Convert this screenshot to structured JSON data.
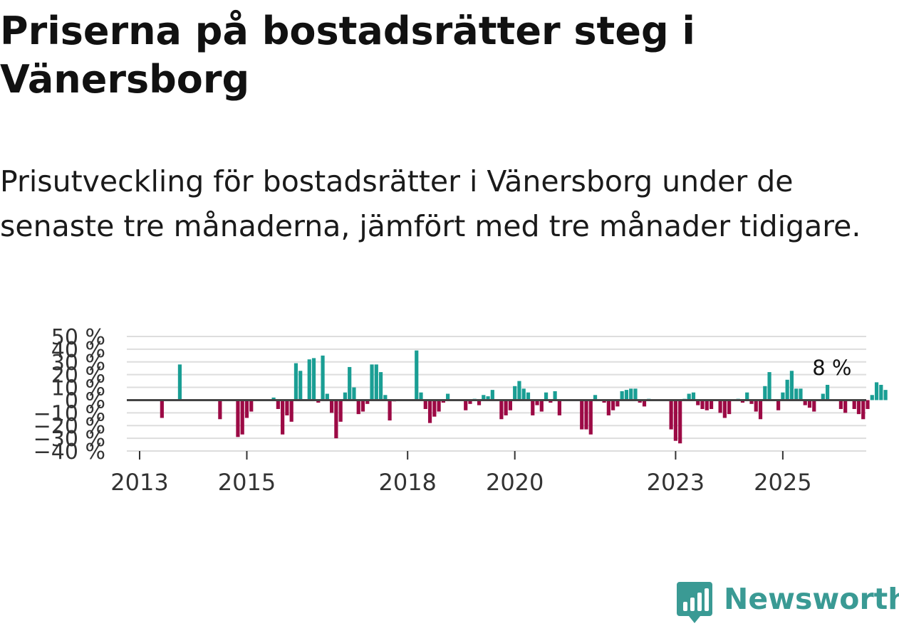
{
  "title": "Priserna på bostadsrätter steg i Vänersborg",
  "subtitle": "Prisutveckling för bostadsrätter i Vänersborg under de senaste tre månaderna, jämfört med tre månader tidigare.",
  "brand": {
    "name": "Newsworthy",
    "icon": "newsworthy-logo-icon",
    "color": "#3a9a94"
  },
  "colors": {
    "positive": "#1a9e94",
    "negative": "#9c0a45",
    "zero_line": "#444444",
    "grid": "#dddddd"
  },
  "chart_data": {
    "type": "bar",
    "title": "",
    "xlabel": "",
    "ylabel": "",
    "ylim": [
      -40,
      50
    ],
    "yticks": [
      50,
      40,
      30,
      20,
      10,
      0,
      -10,
      -20,
      -30,
      -40
    ],
    "ytick_labels": [
      "50 %",
      "40 %",
      "30 %",
      "20 %",
      "10 %",
      "0 %",
      "−10 %",
      "−20 %",
      "−30 %",
      "−40 %"
    ],
    "x_start": "2013-01",
    "xticks": [
      2013,
      2015,
      2018,
      2020,
      2023,
      2025
    ],
    "xtick_labels": [
      "2013",
      "2015",
      "2018",
      "2020",
      "2023",
      "2025"
    ],
    "annotation": {
      "text": "8 %",
      "period": "2025-12"
    },
    "series": [
      {
        "name": "Prisutveckling",
        "values": [
          null,
          null,
          null,
          null,
          null,
          -14,
          null,
          null,
          null,
          28,
          null,
          null,
          null,
          null,
          null,
          null,
          null,
          null,
          -15,
          null,
          null,
          null,
          -29,
          -27,
          -14,
          -9,
          null,
          null,
          null,
          null,
          2,
          -7,
          -27,
          -12,
          -17,
          29,
          23,
          null,
          32,
          33,
          -2,
          35,
          5,
          -10,
          -30,
          -17,
          6,
          26,
          10,
          -11,
          -9,
          -3,
          28,
          28,
          22,
          4,
          -16,
          -1,
          null,
          null,
          null,
          null,
          39,
          6,
          -7,
          -18,
          -13,
          -9,
          -2,
          5,
          null,
          null,
          null,
          -8,
          -3,
          1,
          -4,
          4,
          3,
          8,
          null,
          -15,
          -12,
          -8,
          11,
          15,
          9,
          6,
          -12,
          -4,
          -9,
          6,
          -2,
          7,
          -12,
          null,
          null,
          null,
          null,
          -23,
          -23,
          -27,
          4,
          null,
          -2,
          -12,
          -8,
          -5,
          7,
          8,
          9,
          9,
          -2,
          -5,
          1,
          null,
          null,
          null,
          null,
          -23,
          -32,
          -34,
          1,
          5,
          6,
          -4,
          -7,
          -8,
          -7,
          null,
          -10,
          -14,
          -11,
          null,
          1,
          -2,
          6,
          -3,
          -9,
          -15,
          11,
          22,
          null,
          -8,
          6,
          16,
          23,
          9,
          9,
          -4,
          -6,
          -9,
          null,
          5,
          12,
          null,
          null,
          -7,
          -10,
          null,
          -7,
          -11,
          -15,
          -7,
          4,
          14,
          12,
          8
        ]
      }
    ]
  }
}
